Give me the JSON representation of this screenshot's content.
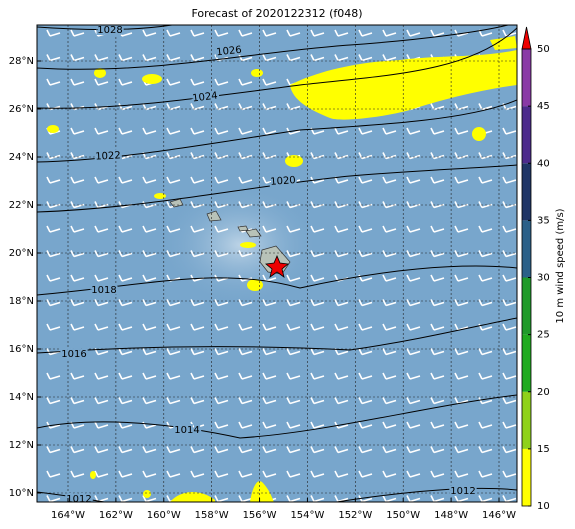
{
  "map": {
    "title": "Forecast of 2020122312 (f048)",
    "lon_ticks": [
      {
        "value": -164,
        "label": "164°W"
      },
      {
        "value": -162,
        "label": "162°W"
      },
      {
        "value": -160,
        "label": "160°W"
      },
      {
        "value": -158,
        "label": "158°W"
      },
      {
        "value": -156,
        "label": "156°W"
      },
      {
        "value": -154,
        "label": "154°W"
      },
      {
        "value": -152,
        "label": "152°W"
      },
      {
        "value": -150,
        "label": "150°W"
      },
      {
        "value": -148,
        "label": "148°W"
      },
      {
        "value": -146,
        "label": "146°W"
      }
    ],
    "lat_ticks": [
      {
        "value": 10,
        "label": "10°N"
      },
      {
        "value": 12,
        "label": "12°N"
      },
      {
        "value": 14,
        "label": "14°N"
      },
      {
        "value": 16,
        "label": "16°N"
      },
      {
        "value": 18,
        "label": "18°N"
      },
      {
        "value": 20,
        "label": "20°N"
      },
      {
        "value": 22,
        "label": "22°N"
      },
      {
        "value": 24,
        "label": "24°N"
      },
      {
        "value": 26,
        "label": "26°N"
      },
      {
        "value": 28,
        "label": "28°N"
      }
    ],
    "isobar_labels": [
      "1028",
      "1026",
      "1024",
      "1022",
      "1020",
      "1018",
      "1016",
      "1014",
      "1012"
    ],
    "colorbar": {
      "label": "10 m wind speed (m/s)",
      "ticks": [
        10,
        15,
        20,
        25,
        30,
        35,
        40,
        45,
        50
      ],
      "colors": [
        "#ffff00",
        "#8fd11a",
        "#1faa1f",
        "#1f9a2a",
        "#2b6088",
        "#1f3566",
        "#4d2b8c",
        "#8a3aa6"
      ],
      "extend_color": "#ee0000"
    }
  }
}
